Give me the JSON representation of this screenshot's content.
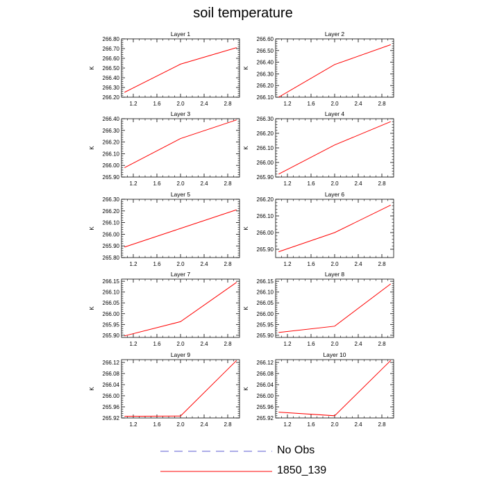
{
  "title": "soil temperature",
  "colors": {
    "series": "#ff0000",
    "obs": "#5a5ad2",
    "axis": "#000000"
  },
  "legend": {
    "entries": [
      {
        "label": "No Obs",
        "style": "dashed",
        "color": "#5a5ad2"
      },
      {
        "label": "1850_139",
        "style": "solid",
        "color": "#ff0000"
      }
    ]
  },
  "chart_data": [
    {
      "type": "line",
      "title": "Layer 1",
      "ylabel": "K",
      "xlabel": "",
      "xlim": [
        1.0,
        3.0
      ],
      "ylim": [
        266.2,
        266.8
      ],
      "xticks": [
        1.2,
        1.6,
        2.0,
        2.4,
        2.8
      ],
      "xtick_labels": [
        "1.2",
        "1.6",
        "2.0",
        "2.4",
        "2.8"
      ],
      "yticks": [
        266.2,
        266.3,
        266.4,
        266.5,
        266.6,
        266.7,
        266.8
      ],
      "ytick_labels": [
        "266.20",
        "266.30",
        "266.40",
        "266.50",
        "266.60",
        "266.70",
        "266.80"
      ],
      "series": [
        {
          "name": "1850_139",
          "x": [
            1.05,
            2.0,
            2.95
          ],
          "y": [
            266.25,
            266.54,
            266.71
          ]
        }
      ]
    },
    {
      "type": "line",
      "title": "Layer 2",
      "ylabel": "K",
      "xlabel": "",
      "xlim": [
        1.0,
        3.0
      ],
      "ylim": [
        266.1,
        266.6
      ],
      "xticks": [
        1.2,
        1.6,
        2.0,
        2.4,
        2.8
      ],
      "xtick_labels": [
        "1.2",
        "1.6",
        "2.0",
        "2.4",
        "2.8"
      ],
      "yticks": [
        266.1,
        266.2,
        266.3,
        266.4,
        266.5,
        266.6
      ],
      "ytick_labels": [
        "266.10",
        "266.20",
        "266.30",
        "266.40",
        "266.50",
        "266.60"
      ],
      "series": [
        {
          "name": "1850_139",
          "x": [
            1.05,
            2.0,
            2.95
          ],
          "y": [
            266.1,
            266.38,
            266.55
          ]
        }
      ]
    },
    {
      "type": "line",
      "title": "Layer 3",
      "ylabel": "K",
      "xlabel": "",
      "xlim": [
        1.0,
        3.0
      ],
      "ylim": [
        265.9,
        266.4
      ],
      "xticks": [
        1.2,
        1.6,
        2.0,
        2.4,
        2.8
      ],
      "xtick_labels": [
        "1.2",
        "1.6",
        "2.0",
        "2.4",
        "2.8"
      ],
      "yticks": [
        265.9,
        266.0,
        266.1,
        266.2,
        266.3,
        266.4
      ],
      "ytick_labels": [
        "265.90",
        "266.00",
        "266.10",
        "266.20",
        "266.30",
        "266.40"
      ],
      "series": [
        {
          "name": "1850_139",
          "x": [
            1.05,
            2.0,
            2.95
          ],
          "y": [
            265.98,
            266.23,
            266.39
          ]
        }
      ]
    },
    {
      "type": "line",
      "title": "Layer 4",
      "ylabel": "K",
      "xlabel": "",
      "xlim": [
        1.0,
        3.0
      ],
      "ylim": [
        265.9,
        266.3
      ],
      "xticks": [
        1.2,
        1.6,
        2.0,
        2.4,
        2.8
      ],
      "xtick_labels": [
        "1.2",
        "1.6",
        "2.0",
        "2.4",
        "2.8"
      ],
      "yticks": [
        265.9,
        266.0,
        266.1,
        266.2,
        266.3
      ],
      "ytick_labels": [
        "265.90",
        "266.00",
        "266.10",
        "266.20",
        "266.30"
      ],
      "series": [
        {
          "name": "1850_139",
          "x": [
            1.05,
            2.0,
            2.95
          ],
          "y": [
            265.92,
            266.12,
            266.28
          ]
        }
      ]
    },
    {
      "type": "line",
      "title": "Layer 5",
      "ylabel": "K",
      "xlabel": "",
      "xlim": [
        1.0,
        3.0
      ],
      "ylim": [
        265.8,
        266.3
      ],
      "xticks": [
        1.2,
        1.6,
        2.0,
        2.4,
        2.8
      ],
      "xtick_labels": [
        "1.2",
        "1.6",
        "2.0",
        "2.4",
        "2.8"
      ],
      "yticks": [
        265.8,
        265.9,
        266.0,
        266.1,
        266.2,
        266.3
      ],
      "ytick_labels": [
        "265.80",
        "265.90",
        "266.00",
        "266.10",
        "266.20",
        "266.30"
      ],
      "series": [
        {
          "name": "1850_139",
          "x": [
            1.05,
            2.0,
            2.95
          ],
          "y": [
            265.89,
            266.05,
            266.21
          ]
        }
      ]
    },
    {
      "type": "line",
      "title": "Layer 6",
      "ylabel": "K",
      "xlabel": "",
      "xlim": [
        1.0,
        3.0
      ],
      "ylim": [
        265.85,
        266.2
      ],
      "xticks": [
        1.2,
        1.6,
        2.0,
        2.4,
        2.8
      ],
      "xtick_labels": [
        "1.2",
        "1.6",
        "2.0",
        "2.4",
        "2.8"
      ],
      "yticks": [
        265.9,
        266.0,
        266.1,
        266.2
      ],
      "ytick_labels": [
        "265.90",
        "266.00",
        "266.10",
        "266.20"
      ],
      "series": [
        {
          "name": "1850_139",
          "x": [
            1.05,
            2.0,
            2.95
          ],
          "y": [
            265.885,
            266.0,
            266.165
          ]
        }
      ]
    },
    {
      "type": "line",
      "title": "Layer 7",
      "ylabel": "K",
      "xlabel": "",
      "xlim": [
        1.0,
        3.0
      ],
      "ylim": [
        265.89,
        266.16
      ],
      "xticks": [
        1.2,
        1.6,
        2.0,
        2.4,
        2.8
      ],
      "xtick_labels": [
        "1.2",
        "1.6",
        "2.0",
        "2.4",
        "2.8"
      ],
      "yticks": [
        265.9,
        265.95,
        266.0,
        266.05,
        266.1,
        266.15
      ],
      "ytick_labels": [
        "265.90",
        "265.95",
        "266.00",
        "266.05",
        "266.10",
        "266.15"
      ],
      "series": [
        {
          "name": "1850_139",
          "x": [
            1.05,
            2.0,
            2.95
          ],
          "y": [
            265.897,
            265.963,
            266.145
          ]
        }
      ]
    },
    {
      "type": "line",
      "title": "Layer 8",
      "ylabel": "K",
      "xlabel": "",
      "xlim": [
        1.0,
        3.0
      ],
      "ylim": [
        265.89,
        266.16
      ],
      "xticks": [
        1.2,
        1.6,
        2.0,
        2.4,
        2.8
      ],
      "xtick_labels": [
        "1.2",
        "1.6",
        "2.0",
        "2.4",
        "2.8"
      ],
      "yticks": [
        265.9,
        265.95,
        266.0,
        266.05,
        266.1,
        266.15
      ],
      "ytick_labels": [
        "265.90",
        "265.95",
        "266.00",
        "266.05",
        "266.10",
        "266.15"
      ],
      "series": [
        {
          "name": "1850_139",
          "x": [
            1.05,
            2.0,
            2.95
          ],
          "y": [
            265.913,
            265.942,
            266.138
          ]
        }
      ]
    },
    {
      "type": "line",
      "title": "Layer 9",
      "ylabel": "K",
      "xlabel": "",
      "xlim": [
        1.0,
        3.0
      ],
      "ylim": [
        265.92,
        266.13
      ],
      "xticks": [
        1.2,
        1.6,
        2.0,
        2.4,
        2.8
      ],
      "xtick_labels": [
        "1.2",
        "1.6",
        "2.0",
        "2.4",
        "2.8"
      ],
      "yticks": [
        265.92,
        265.96,
        266.0,
        266.04,
        266.08,
        266.12
      ],
      "ytick_labels": [
        "265.92",
        "265.96",
        "266.00",
        "266.04",
        "266.08",
        "266.12"
      ],
      "series": [
        {
          "name": "1850_139",
          "x": [
            1.05,
            2.0,
            2.95
          ],
          "y": [
            265.926,
            265.927,
            266.127
          ]
        }
      ]
    },
    {
      "type": "line",
      "title": "Layer 10",
      "ylabel": "K",
      "xlabel": "",
      "xlim": [
        1.0,
        3.0
      ],
      "ylim": [
        265.92,
        266.13
      ],
      "xticks": [
        1.2,
        1.6,
        2.0,
        2.4,
        2.8
      ],
      "xtick_labels": [
        "1.2",
        "1.6",
        "2.0",
        "2.4",
        "2.8"
      ],
      "yticks": [
        265.92,
        265.96,
        266.0,
        266.04,
        266.08,
        266.12
      ],
      "ytick_labels": [
        "265.92",
        "265.96",
        "266.00",
        "266.04",
        "266.08",
        "266.12"
      ],
      "series": [
        {
          "name": "1850_139",
          "x": [
            1.05,
            2.0,
            2.95
          ],
          "y": [
            265.941,
            265.928,
            266.127
          ]
        }
      ]
    }
  ]
}
